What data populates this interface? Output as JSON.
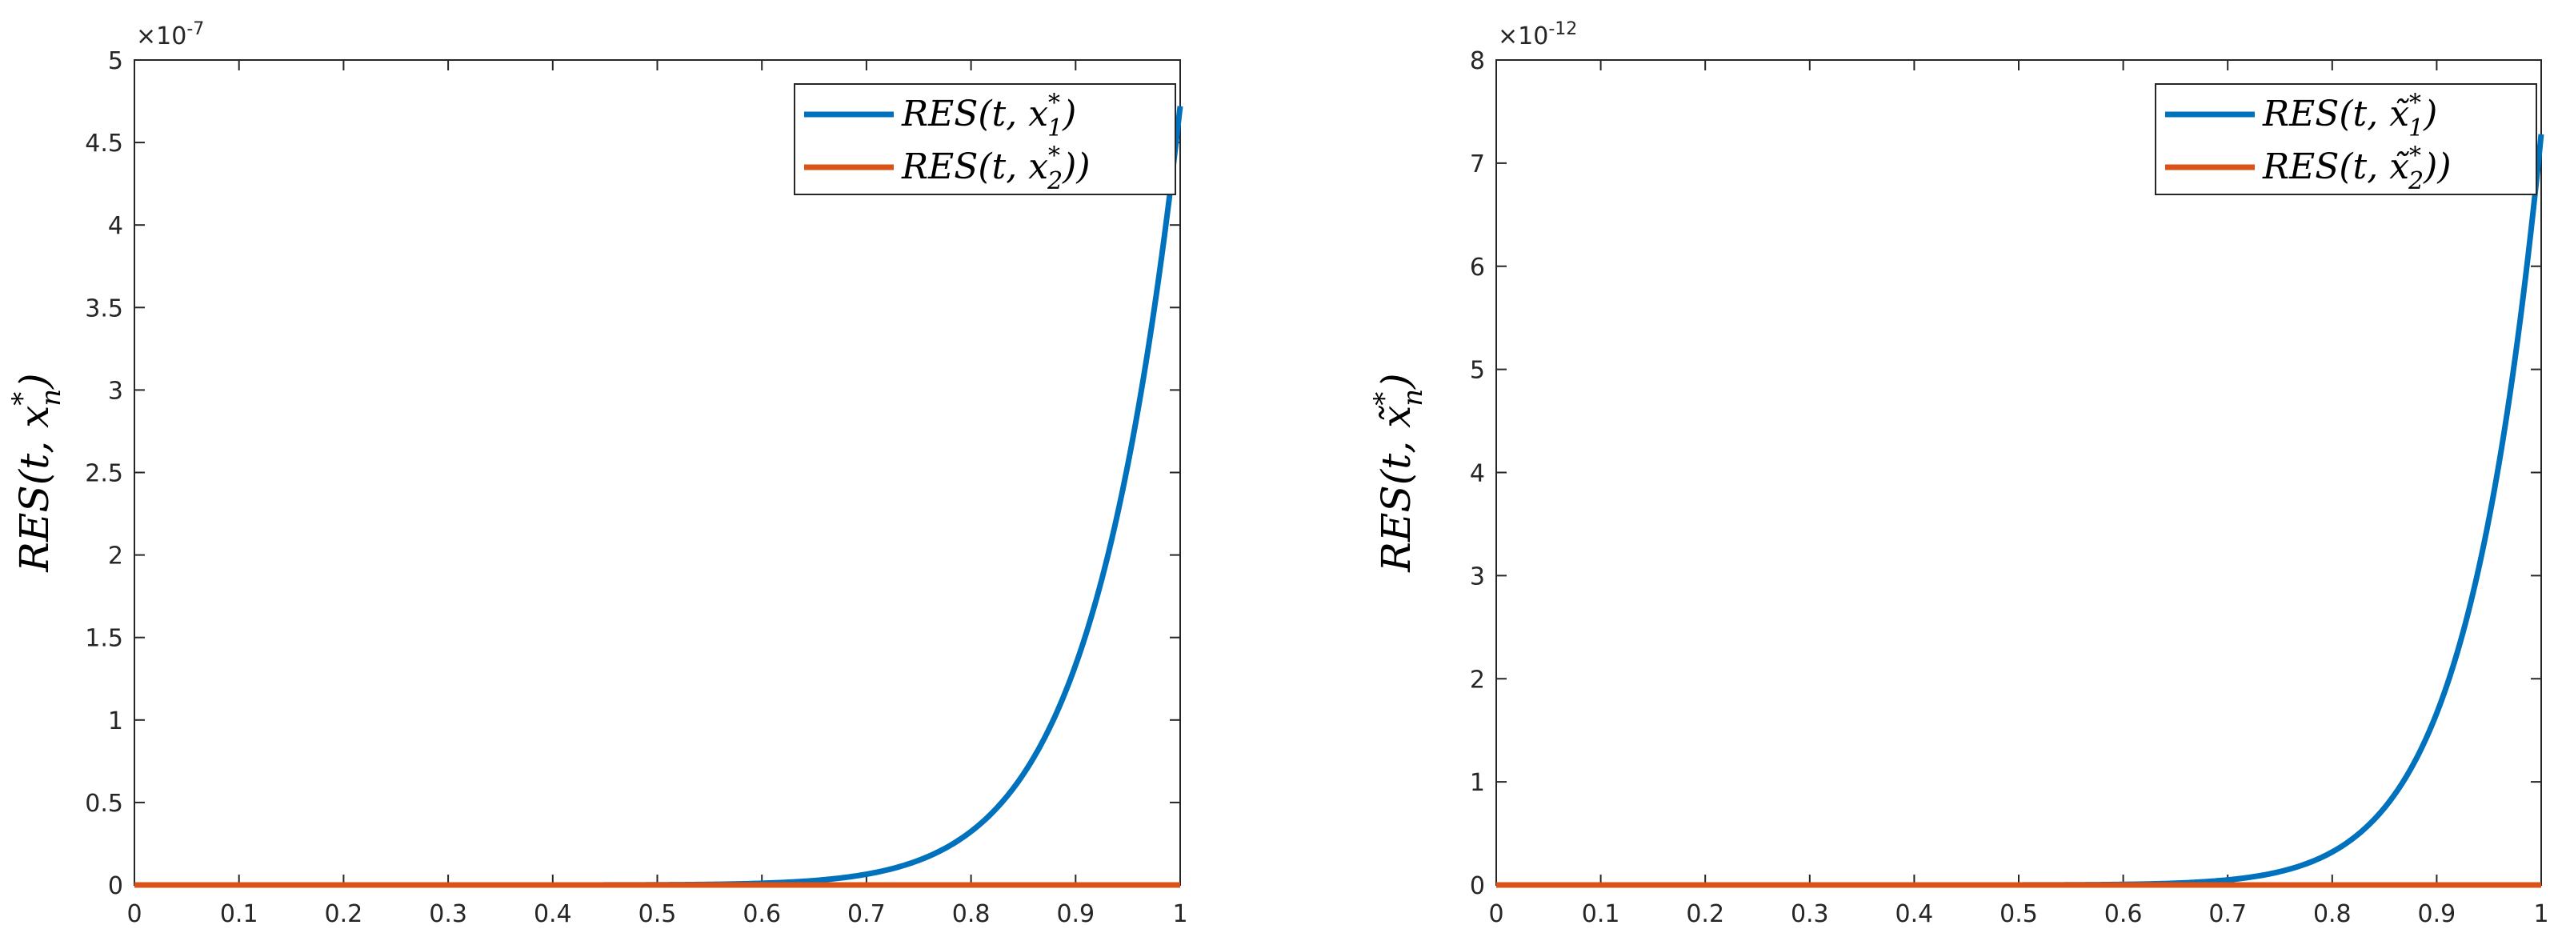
{
  "chart_data": [
    {
      "type": "line",
      "xlim": [
        0,
        1
      ],
      "ylim": [
        0,
        5
      ],
      "y_multiplier": "×10",
      "y_exponent": "-7",
      "x_ticks": [
        "0",
        "0.1",
        "0.2",
        "0.3",
        "0.4",
        "0.5",
        "0.6",
        "0.7",
        "0.8",
        "0.9",
        "1"
      ],
      "y_ticks": [
        "0",
        "0.5",
        "1",
        "1.5",
        "2",
        "2.5",
        "3",
        "3.5",
        "4",
        "4.5",
        "5"
      ],
      "ylabel": {
        "main": "RES(t, x",
        "sup": "*",
        "sub": "n",
        "tail": ")"
      },
      "xlabel": "",
      "title": "",
      "grid": false,
      "legend_position": "top-right",
      "series": [
        {
          "name": "RES(t, x₁*)",
          "label": {
            "main": "RES(t, x",
            "sup": "*",
            "sub": "1",
            "tail": ")"
          },
          "color": "#0072BD",
          "model": "power",
          "y_end": 4.72,
          "exponent": 12
        },
        {
          "name": "RES(t, x₂*))",
          "label": {
            "main": "RES(t, x",
            "sup": "*",
            "sub": "2",
            "tail": "))"
          },
          "color": "#D95319",
          "model": "zero",
          "y_end": 0,
          "exponent": 0
        }
      ]
    },
    {
      "type": "line",
      "xlim": [
        0,
        1
      ],
      "ylim": [
        0,
        8
      ],
      "y_multiplier": "×10",
      "y_exponent": "-12",
      "x_ticks": [
        "0",
        "0.1",
        "0.2",
        "0.3",
        "0.4",
        "0.5",
        "0.6",
        "0.7",
        "0.8",
        "0.9",
        "1"
      ],
      "y_ticks": [
        "0",
        "1",
        "2",
        "3",
        "4",
        "5",
        "6",
        "7",
        "8"
      ],
      "ylabel": {
        "main": "RES(t, x̃",
        "sup": "*",
        "sub": "n",
        "tail": ")"
      },
      "xlabel": "",
      "title": "",
      "grid": false,
      "legend_position": "top-right",
      "series": [
        {
          "name": "RES(t, x̃₁*)",
          "label": {
            "main": "RES(t, x̃",
            "sup": "*",
            "sub": "1",
            "tail": ")"
          },
          "color": "#0072BD",
          "model": "power",
          "y_end": 7.28,
          "exponent": 14
        },
        {
          "name": "RES(t, x̃₂*))",
          "label": {
            "main": "RES(t, x̃",
            "sup": "*",
            "sub": "2",
            "tail": "))"
          },
          "color": "#D95319",
          "model": "zero",
          "y_end": 0,
          "exponent": 0
        }
      ]
    }
  ]
}
